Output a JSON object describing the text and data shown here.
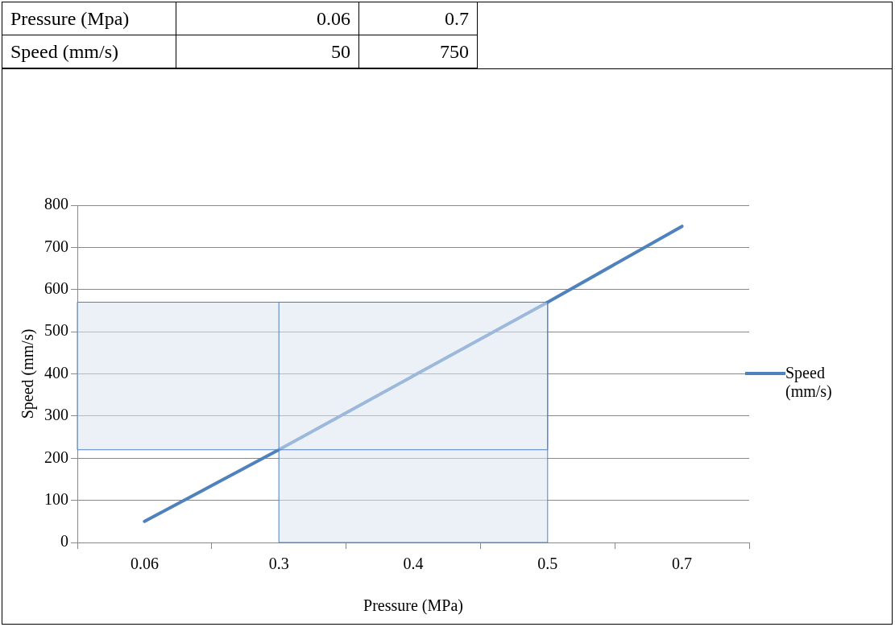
{
  "chart_data": {
    "type": "line",
    "xlabel": "Pressure (MPa)",
    "ylabel": "Speed (mm/s)",
    "categories": [
      "0.06",
      "0.3",
      "0.4",
      "0.5",
      "0.7"
    ],
    "series": [
      {
        "name": "Speed (mm/s)",
        "color": "#4f81bd",
        "values": [
          50,
          220,
          395,
          570,
          750
        ]
      }
    ],
    "ylim": [
      0,
      800
    ],
    "yticks": [
      0,
      100,
      200,
      300,
      400,
      500,
      600,
      700,
      800
    ],
    "grid": "y",
    "legend": "right",
    "marker": "none",
    "line_style": "solid",
    "bands": [
      {
        "axis": "y",
        "from": 220,
        "to": 570,
        "color": "#dce6f2"
      },
      {
        "axis": "x",
        "from": "0.3",
        "to": "0.5",
        "color": "#dce6f2"
      }
    ],
    "annotations": [
      "Pressure (Mpa)",
      "0.06",
      "0.7",
      "Speed (mm/s)",
      "50",
      "750"
    ]
  }
}
